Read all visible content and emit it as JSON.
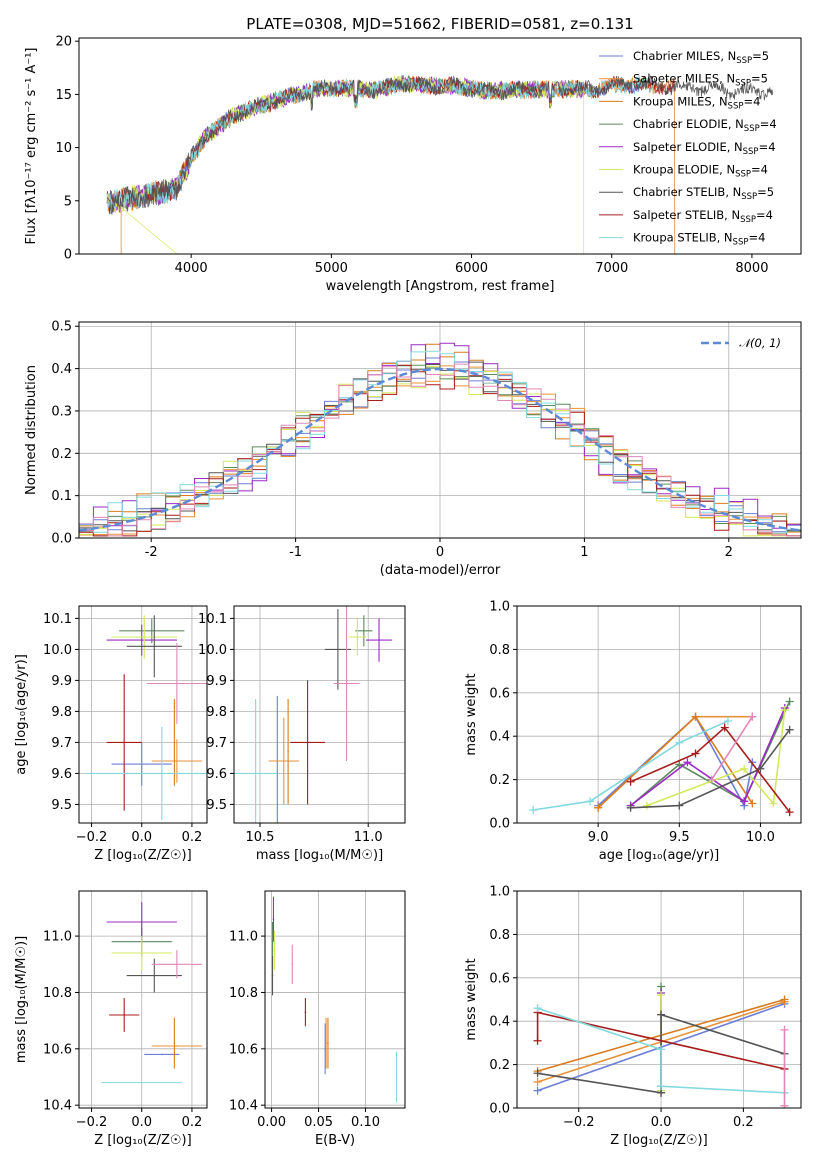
{
  "figure_title": "PLATE=0308, MJD=51662, FIBERID=0581, z=0.131",
  "colors": [
    "#6b7fd6",
    "#e8923a",
    "#d97c1f",
    "#5c8a5c",
    "#9b2bc4",
    "#d4e85a",
    "#555555",
    "#a81c1c",
    "#82d9df"
  ],
  "chart_data": [
    {
      "id": "spectrum",
      "type": "line",
      "xlabel": "wavelength [Angstrom, rest frame]",
      "ylabel": "Flux [fλ10⁻¹⁷ erg cm⁻² s⁻¹ A⁻¹]",
      "xlim": [
        3200,
        8350
      ],
      "ylim": [
        0,
        20.3
      ],
      "xticks": [
        4000,
        5000,
        6000,
        7000,
        8000
      ],
      "yticks": [
        0,
        5,
        10,
        15,
        20
      ],
      "grid": false,
      "legend_position": "top-right",
      "continuum_knots": {
        "x": [
          3400,
          3550,
          3700,
          3800,
          3900,
          4000,
          4100,
          4300,
          4500,
          4700,
          4900,
          5100,
          5300,
          5500,
          5700,
          5900,
          6100,
          6300,
          6500,
          6700,
          6900,
          7100,
          7300,
          7500,
          7700,
          7900,
          8150
        ],
        "y": [
          4.8,
          5.2,
          5.6,
          5.8,
          6.3,
          9.0,
          11.0,
          13.0,
          14.0,
          14.8,
          15.5,
          15.6,
          15.4,
          16.0,
          15.8,
          15.8,
          15.3,
          15.4,
          15.5,
          15.5,
          15.5,
          16.0,
          15.8,
          15.6,
          15.6,
          15.3,
          15.3
        ]
      },
      "series": [
        {
          "name": "Chabrier MILES, N",
          "sub": "SSP",
          "suffix": "=5",
          "color": "#6b7fd6",
          "x_start": 3400,
          "x_end": 7200
        },
        {
          "name": "Salpeter MILES, N",
          "sub": "SSP",
          "suffix": "=5",
          "color": "#e8923a",
          "x_start": 3400,
          "x_end": 7200
        },
        {
          "name": "Kroupa MILES, N",
          "sub": "SSP",
          "suffix": "=4",
          "color": "#d97c1f",
          "x_start": 3500,
          "x_end": 7450
        },
        {
          "name": "Chabrier ELODIE, N",
          "sub": "SSP",
          "suffix": "=4",
          "color": "#5c8a5c",
          "x_start": 3400,
          "x_end": 6800
        },
        {
          "name": "Salpeter ELODIE, N",
          "sub": "SSP",
          "suffix": "=4",
          "color": "#9b2bc4",
          "x_start": 3400,
          "x_end": 6800
        },
        {
          "name": "Kroupa ELODIE, N",
          "sub": "SSP",
          "suffix": "=4",
          "color": "#d4e85a",
          "x_start": 3400,
          "x_end": 6800
        },
        {
          "name": "Chabrier STELIB, N",
          "sub": "SSP",
          "suffix": "=5",
          "color": "#555555",
          "x_start": 3400,
          "x_end": 8150
        },
        {
          "name": "Salpeter STELIB, N",
          "sub": "SSP",
          "suffix": "=4",
          "color": "#a81c1c",
          "x_start": 3400,
          "x_end": 7450
        },
        {
          "name": "Kroupa STELIB, N",
          "sub": "SSP",
          "suffix": "=4",
          "color": "#82d9df",
          "x_start": 3400,
          "x_end": 7300
        }
      ]
    },
    {
      "id": "residuals",
      "type": "bar",
      "xlabel": "(data-model)/error",
      "ylabel": "Normed distribution",
      "xlim": [
        -2.5,
        2.5
      ],
      "ylim": [
        0,
        0.51
      ],
      "xticks": [
        -2,
        -1,
        0,
        1,
        2
      ],
      "yticks": [
        0.0,
        0.1,
        0.2,
        0.3,
        0.4,
        0.5
      ],
      "grid": true,
      "legend_position": "top-right",
      "gaussian": {
        "label": "𝒩(0, 1)",
        "color": "#5b8bd6",
        "mu": 0,
        "sigma": 1
      },
      "bin_edges": [
        -2.5,
        -2.4,
        -2.3,
        -2.2,
        -2.1,
        -2.0,
        -1.9,
        -1.8,
        -1.7,
        -1.6,
        -1.5,
        -1.4,
        -1.3,
        -1.2,
        -1.1,
        -1.0,
        -0.9,
        -0.8,
        -0.7,
        -0.6,
        -0.5,
        -0.4,
        -0.3,
        -0.2,
        -0.1,
        0.0,
        0.1,
        0.2,
        0.3,
        0.4,
        0.5,
        0.6,
        0.7,
        0.8,
        0.9,
        1.0,
        1.1,
        1.2,
        1.3,
        1.4,
        1.5,
        1.6,
        1.7,
        1.8,
        1.9,
        2.0,
        2.1,
        2.2,
        2.3,
        2.4,
        2.5
      ],
      "hist_colors": [
        "#6b7fd6",
        "#e8923a",
        "#d97c1f",
        "#5c8a5c",
        "#9b2bc4",
        "#d4e85a",
        "#555555",
        "#a81c1c",
        "#82d9df",
        "#e087b8"
      ],
      "hist_jitter": [
        0.012,
        -0.018,
        0.025,
        -0.006,
        0.03,
        -0.022,
        0.008,
        -0.015,
        0.02,
        -0.01
      ]
    },
    {
      "id": "age_vs_z",
      "type": "scatter",
      "xlabel": "Z [log₁₀(Z/Z☉)]",
      "ylabel": "age  [log₁₀(age/yr)]",
      "xlim": [
        -0.25,
        0.26
      ],
      "ylim": [
        9.44,
        10.14
      ],
      "xticks": [
        -0.2,
        0.0,
        0.2
      ],
      "yticks": [
        9.5,
        9.6,
        9.7,
        9.8,
        9.9,
        10.0,
        10.1
      ],
      "grid": true,
      "points": [
        {
          "x": 0.0,
          "y": 9.63,
          "xerr": 0.12,
          "yerr": 0.07,
          "color": "#6b7fd6"
        },
        {
          "x": 0.14,
          "y": 9.64,
          "xerr": 0.1,
          "yerr": 0.07,
          "color": "#e8923a"
        },
        {
          "x": 0.13,
          "y": 9.7,
          "xerr": 0.0,
          "yerr": 0.14,
          "color": "#d97c1f"
        },
        {
          "x": 0.04,
          "y": 10.06,
          "xerr": 0.13,
          "yerr": 0.04,
          "color": "#5c8a5c"
        },
        {
          "x": 0.0,
          "y": 10.03,
          "xerr": 0.14,
          "yerr": 0.05,
          "color": "#9b2bc4"
        },
        {
          "x": 0.01,
          "y": 10.04,
          "xerr": 0.13,
          "yerr": 0.07,
          "color": "#d4e85a"
        },
        {
          "x": 0.05,
          "y": 10.01,
          "xerr": 0.11,
          "yerr": 0.1,
          "color": "#555555"
        },
        {
          "x": -0.07,
          "y": 9.7,
          "xerr": 0.07,
          "yerr": 0.22,
          "color": "#a81c1c"
        },
        {
          "x": 0.08,
          "y": 9.6,
          "xerr": 0.3,
          "yerr": 0.15,
          "color": "#82d9df"
        },
        {
          "x": 0.14,
          "y": 9.89,
          "xerr": 0.12,
          "yerr": 0.13,
          "color": "#e087b8"
        }
      ]
    },
    {
      "id": "age_vs_mass",
      "type": "scatter",
      "xlabel": "mass [log₁₀(M/M☉)]",
      "ylabel": "",
      "xlim": [
        10.38,
        11.17
      ],
      "ylim": [
        9.44,
        10.14
      ],
      "xticks": [
        10.5,
        11.0
      ],
      "yticks": [
        9.5,
        9.6,
        9.7,
        9.8,
        9.9,
        10.0,
        10.1
      ],
      "grid": true,
      "points": [
        {
          "x": 10.58,
          "y": 9.6,
          "xerr": 0.0,
          "yerr": 0.25,
          "color": "#6b7fd6"
        },
        {
          "x": 10.61,
          "y": 9.64,
          "xerr": 0.07,
          "yerr": 0.14,
          "color": "#e8923a"
        },
        {
          "x": 10.63,
          "y": 9.67,
          "xerr": 0.0,
          "yerr": 0.17,
          "color": "#d97c1f"
        },
        {
          "x": 10.98,
          "y": 10.06,
          "xerr": 0.04,
          "yerr": 0.05,
          "color": "#5c8a5c"
        },
        {
          "x": 11.05,
          "y": 10.03,
          "xerr": 0.06,
          "yerr": 0.07,
          "color": "#9b2bc4"
        },
        {
          "x": 10.95,
          "y": 10.04,
          "xerr": 0.04,
          "yerr": 0.06,
          "color": "#d4e85a"
        },
        {
          "x": 10.86,
          "y": 10.0,
          "xerr": 0.06,
          "yerr": 0.13,
          "color": "#555555"
        },
        {
          "x": 10.72,
          "y": 9.7,
          "xerr": 0.08,
          "yerr": 0.2,
          "color": "#a81c1c"
        },
        {
          "x": 10.48,
          "y": 9.6,
          "xerr": 0.1,
          "yerr": 0.24,
          "color": "#82d9df"
        },
        {
          "x": 10.9,
          "y": 9.89,
          "xerr": 0.06,
          "yerr": 0.25,
          "color": "#e087b8"
        }
      ]
    },
    {
      "id": "mass_weight_vs_age",
      "type": "line",
      "xlabel": "age  [log₁₀(age/yr)]",
      "ylabel": "mass weight",
      "xlim": [
        8.5,
        10.25
      ],
      "ylim": [
        0,
        1.0
      ],
      "xticks": [
        9.0,
        9.5,
        10.0
      ],
      "yticks": [
        0.0,
        0.2,
        0.4,
        0.6,
        0.8,
        1.0
      ],
      "grid": true,
      "series": [
        {
          "color": "#6b7fd6",
          "x": [
            9.0,
            9.6,
            9.9,
            9.95
          ],
          "y": [
            0.08,
            0.49,
            0.08,
            0.28
          ]
        },
        {
          "color": "#e8923a",
          "x": [
            9.0,
            9.6,
            9.95
          ],
          "y": [
            0.07,
            0.49,
            0.49
          ]
        },
        {
          "color": "#d97c1f",
          "x": [
            9.0,
            9.6,
            9.95
          ],
          "y": [
            0.07,
            0.49,
            0.09
          ]
        },
        {
          "color": "#5c8a5c",
          "x": [
            9.2,
            9.5,
            9.9,
            10.18
          ],
          "y": [
            0.08,
            0.27,
            0.1,
            0.56
          ]
        },
        {
          "color": "#9b2bc4",
          "x": [
            9.2,
            9.55,
            9.9,
            10.15
          ],
          "y": [
            0.08,
            0.28,
            0.1,
            0.53
          ]
        },
        {
          "color": "#d4e85a",
          "x": [
            9.3,
            9.9,
            10.08,
            10.15
          ],
          "y": [
            0.08,
            0.25,
            0.09,
            0.52
          ]
        },
        {
          "color": "#555555",
          "x": [
            9.2,
            9.5,
            10.0,
            10.18
          ],
          "y": [
            0.07,
            0.08,
            0.25,
            0.43
          ]
        },
        {
          "color": "#a81c1c",
          "x": [
            9.2,
            9.6,
            9.78,
            10.18
          ],
          "y": [
            0.19,
            0.32,
            0.44,
            0.05
          ]
        },
        {
          "color": "#82d9df",
          "x": [
            8.6,
            8.95,
            9.5,
            9.8
          ],
          "y": [
            0.06,
            0.1,
            0.37,
            0.47
          ]
        },
        {
          "color": "#e087b8",
          "x": [
            9.7,
            9.95
          ],
          "y": [
            0.2,
            0.49
          ]
        }
      ]
    },
    {
      "id": "mass_vs_z",
      "type": "scatter",
      "xlabel": "Z [log₁₀(Z/Z☉)]",
      "ylabel": "mass [log₁₀(M/M☉)]",
      "xlim": [
        -0.25,
        0.26
      ],
      "ylim": [
        10.39,
        11.16
      ],
      "xticks": [
        -0.2,
        0.0,
        0.2
      ],
      "yticks": [
        10.4,
        10.6,
        10.8,
        11.0
      ],
      "grid": true,
      "points": [
        {
          "x": 0.08,
          "y": 10.58,
          "xerr": 0.07,
          "yerr": 0.0,
          "color": "#6b7fd6"
        },
        {
          "x": 0.14,
          "y": 10.61,
          "xerr": 0.1,
          "yerr": 0.0,
          "color": "#e8923a"
        },
        {
          "x": 0.13,
          "y": 10.62,
          "xerr": 0.0,
          "yerr": 0.09,
          "color": "#d97c1f"
        },
        {
          "x": 0.0,
          "y": 10.98,
          "xerr": 0.12,
          "yerr": 0.05,
          "color": "#5c8a5c"
        },
        {
          "x": 0.0,
          "y": 11.05,
          "xerr": 0.14,
          "yerr": 0.07,
          "color": "#9b2bc4"
        },
        {
          "x": 0.0,
          "y": 10.94,
          "xerr": 0.12,
          "yerr": 0.06,
          "color": "#d4e85a"
        },
        {
          "x": 0.05,
          "y": 10.86,
          "xerr": 0.11,
          "yerr": 0.06,
          "color": "#555555"
        },
        {
          "x": -0.07,
          "y": 10.72,
          "xerr": 0.06,
          "yerr": 0.06,
          "color": "#a81c1c"
        },
        {
          "x": 0.0,
          "y": 10.48,
          "xerr": 0.16,
          "yerr": 0.0,
          "color": "#82d9df"
        },
        {
          "x": 0.14,
          "y": 10.9,
          "xerr": 0.1,
          "yerr": 0.05,
          "color": "#e087b8"
        }
      ]
    },
    {
      "id": "mass_vs_ebv",
      "type": "scatter",
      "xlabel": "E(B-V)",
      "ylabel": "",
      "xlim": [
        -0.007,
        0.142
      ],
      "ylim": [
        10.39,
        11.16
      ],
      "xticks": [
        0.0,
        0.05,
        0.1
      ],
      "yticks": [
        10.4,
        10.6,
        10.8,
        11.0
      ],
      "grid": true,
      "points": [
        {
          "x": 0.057,
          "y": 10.6,
          "xerr": 0.0,
          "yerr": 0.09,
          "color": "#6b7fd6"
        },
        {
          "x": 0.058,
          "y": 10.62,
          "xerr": 0.0,
          "yerr": 0.09,
          "color": "#e8923a"
        },
        {
          "x": 0.06,
          "y": 10.62,
          "xerr": 0.0,
          "yerr": 0.09,
          "color": "#d97c1f"
        },
        {
          "x": 0.001,
          "y": 10.99,
          "xerr": 0.0,
          "yerr": 0.06,
          "color": "#5c8a5c"
        },
        {
          "x": 0.002,
          "y": 11.06,
          "xerr": 0.0,
          "yerr": 0.08,
          "color": "#9b2bc4"
        },
        {
          "x": 0.003,
          "y": 10.95,
          "xerr": 0.0,
          "yerr": 0.07,
          "color": "#d4e85a"
        },
        {
          "x": 0.001,
          "y": 10.86,
          "xerr": 0.0,
          "yerr": 0.07,
          "color": "#555555"
        },
        {
          "x": 0.036,
          "y": 10.73,
          "xerr": 0.0,
          "yerr": 0.05,
          "color": "#a81c1c"
        },
        {
          "x": 0.133,
          "y": 10.5,
          "xerr": 0.0,
          "yerr": 0.09,
          "color": "#82d9df"
        },
        {
          "x": 0.022,
          "y": 10.9,
          "xerr": 0.0,
          "yerr": 0.07,
          "color": "#e087b8"
        }
      ]
    },
    {
      "id": "mass_weight_vs_z",
      "type": "line",
      "xlabel": "Z [log₁₀(Z/Z☉)]",
      "ylabel": "mass weight",
      "xlim": [
        -0.35,
        0.34
      ],
      "ylim": [
        0,
        1.0
      ],
      "xticks": [
        -0.2,
        0.0,
        0.2
      ],
      "yticks": [
        0.0,
        0.2,
        0.4,
        0.6,
        0.8,
        1.0
      ],
      "grid": true,
      "series": [
        {
          "color": "#6b7fd6",
          "x": [
            -0.3,
            0.3
          ],
          "y": [
            0.08,
            0.48
          ]
        },
        {
          "color": "#e8923a",
          "x": [
            -0.3,
            0.3
          ],
          "y": [
            0.12,
            0.49
          ]
        },
        {
          "color": "#d97c1f",
          "x": [
            -0.3,
            0.3
          ],
          "y": [
            0.17,
            0.5
          ]
        },
        {
          "color": "#5c8a5c",
          "x": [
            0.0,
            0.0
          ],
          "y": [
            0.07,
            0.56
          ]
        },
        {
          "color": "#9b2bc4",
          "x": [
            0.0,
            0.0
          ],
          "y": [
            0.1,
            0.53
          ]
        },
        {
          "color": "#d4e85a",
          "x": [
            0.0,
            0.0
          ],
          "y": [
            0.08,
            0.52
          ]
        },
        {
          "color": "#555555",
          "x": [
            -0.3,
            0.0,
            0.0,
            0.3
          ],
          "y": [
            0.16,
            0.07,
            0.43,
            0.25
          ]
        },
        {
          "color": "#a81c1c",
          "x": [
            -0.3,
            -0.3,
            0.3
          ],
          "y": [
            0.31,
            0.44,
            0.18
          ]
        },
        {
          "color": "#82d9df",
          "x": [
            -0.3,
            0.0,
            0.0,
            0.3
          ],
          "y": [
            0.46,
            0.27,
            0.1,
            0.07
          ]
        },
        {
          "color": "#e087b8",
          "x": [
            0.3,
            0.3
          ],
          "y": [
            0.01,
            0.36
          ]
        }
      ]
    }
  ]
}
